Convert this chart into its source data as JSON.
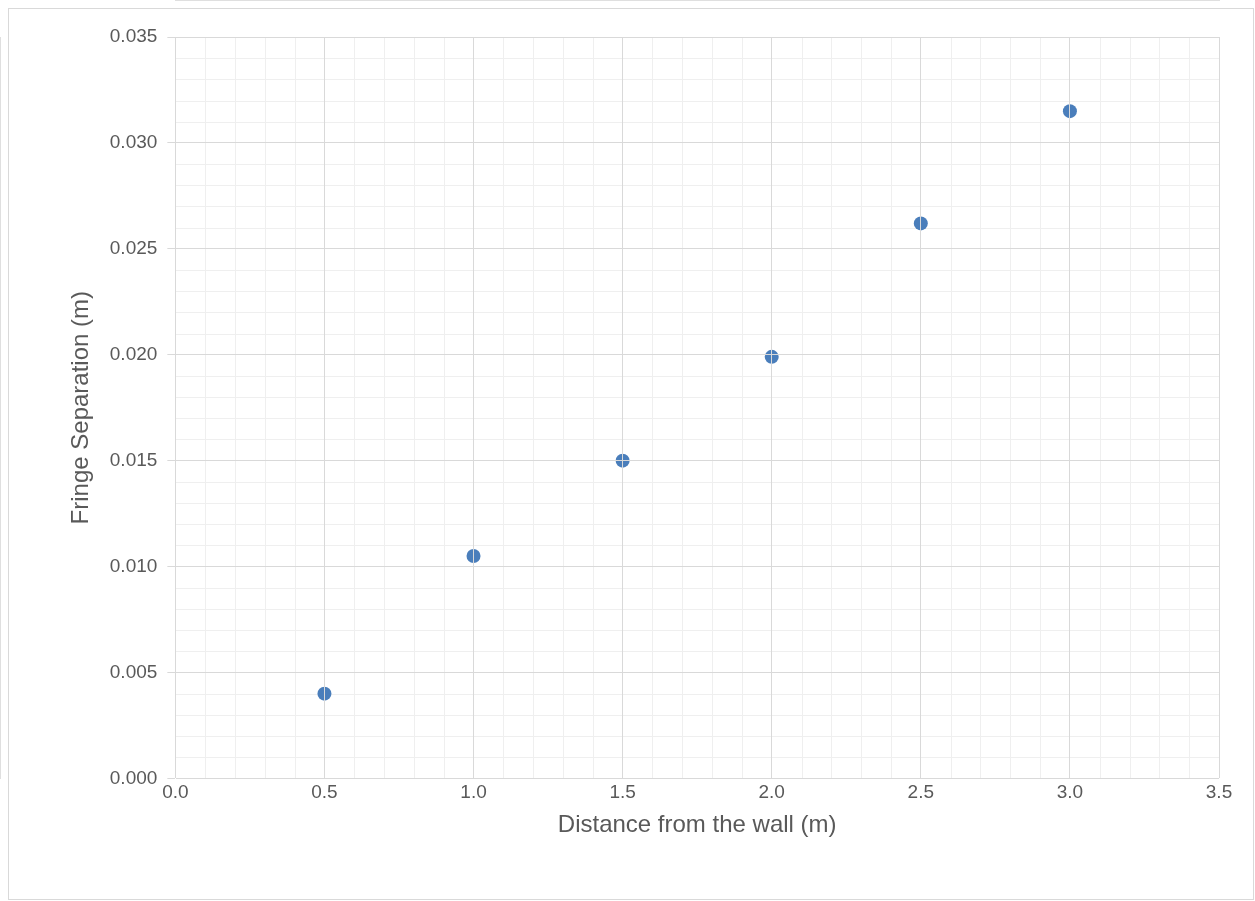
{
  "chart_data": {
    "type": "scatter",
    "xlabel": "Distance from the wall (m)",
    "ylabel": "Fringe Separation (m)",
    "series": [
      {
        "color": "#4a7ebb",
        "x": [
          0.5,
          1.0,
          1.5,
          2.0,
          2.5,
          3.0
        ],
        "values": [
          0.004,
          0.0105,
          0.015,
          0.0199,
          0.0262,
          0.0315
        ]
      }
    ],
    "xlim": [
      0,
      3.5
    ],
    "ylim": [
      0,
      0.035
    ],
    "xticks": [
      {
        "value": 0,
        "label": "0.0"
      },
      {
        "value": 0.5,
        "label": "0.5"
      },
      {
        "value": 1,
        "label": "1.0"
      },
      {
        "value": 1.5,
        "label": "1.5"
      },
      {
        "value": 2,
        "label": "2.0"
      },
      {
        "value": 2.5,
        "label": "2.5"
      },
      {
        "value": 3,
        "label": "3.0"
      },
      {
        "value": 3.5,
        "label": "3.5"
      }
    ],
    "yticks": [
      {
        "value": 0,
        "label": "0.000"
      },
      {
        "value": 0.005,
        "label": "0.005"
      },
      {
        "value": 0.01,
        "label": "0.010"
      },
      {
        "value": 0.015,
        "label": "0.015"
      },
      {
        "value": 0.02,
        "label": "0.020"
      },
      {
        "value": 0.025,
        "label": "0.025"
      },
      {
        "value": 0.03,
        "label": "0.030"
      },
      {
        "value": 0.035,
        "label": "0.035"
      }
    ],
    "grid": true,
    "legend": false,
    "marker": "circle"
  }
}
